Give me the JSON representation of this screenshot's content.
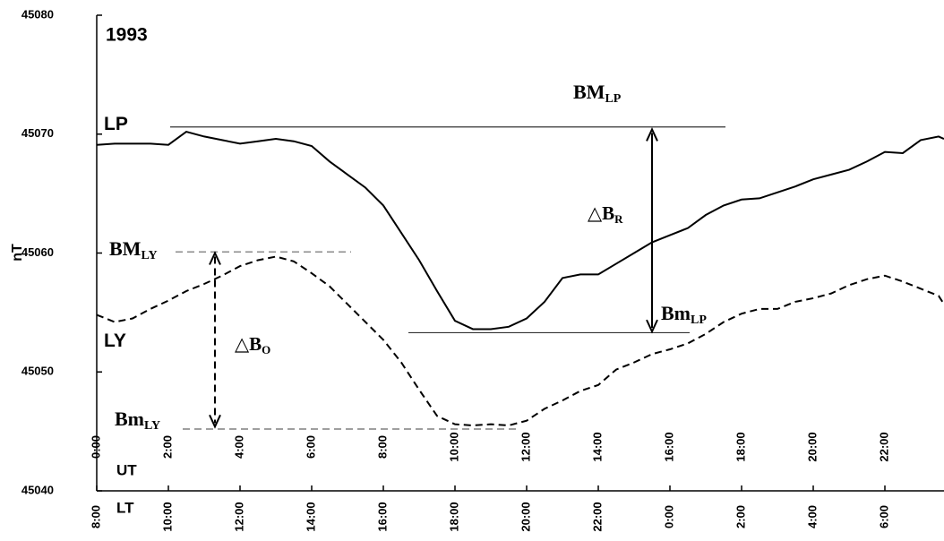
{
  "chart_data": {
    "type": "line",
    "title": "1993",
    "ylabel": "nT",
    "x_axis_label": "UT",
    "x2_axis_label": "LT",
    "xlim": [
      0,
      23.65
    ],
    "ylim": [
      45040,
      45080
    ],
    "yticks": [
      45040,
      45050,
      45060,
      45070,
      45080
    ],
    "xticks": [
      {
        "value": 0,
        "label": "0:00"
      },
      {
        "value": 2,
        "label": "2:00"
      },
      {
        "value": 4,
        "label": "4:00"
      },
      {
        "value": 6,
        "label": "6:00"
      },
      {
        "value": 8,
        "label": "8:00"
      },
      {
        "value": 10,
        "label": "10:00"
      },
      {
        "value": 12,
        "label": "12:00"
      },
      {
        "value": 14,
        "label": "14:00"
      },
      {
        "value": 16,
        "label": "16:00"
      },
      {
        "value": 18,
        "label": "18:00"
      },
      {
        "value": 20,
        "label": "20:00"
      },
      {
        "value": 22,
        "label": "22:00"
      }
    ],
    "x2ticks": [
      {
        "value": 0,
        "label": "8:00"
      },
      {
        "value": 2,
        "label": "10:00"
      },
      {
        "value": 4,
        "label": "12:00"
      },
      {
        "value": 6,
        "label": "14:00"
      },
      {
        "value": 8,
        "label": "16:00"
      },
      {
        "value": 10,
        "label": "18:00"
      },
      {
        "value": 12,
        "label": "20:00"
      },
      {
        "value": 14,
        "label": "22:00"
      },
      {
        "value": 16,
        "label": "0:00"
      },
      {
        "value": 18,
        "label": "2:00"
      },
      {
        "value": 20,
        "label": "4:00"
      },
      {
        "value": 22,
        "label": "6:00"
      }
    ],
    "x": [
      0,
      0.5,
      1,
      1.5,
      2,
      2.5,
      3,
      3.5,
      4,
      4.5,
      5,
      5.5,
      6,
      6.5,
      7,
      7.5,
      8,
      8.5,
      9,
      9.5,
      10,
      10.5,
      11,
      11.5,
      12,
      12.5,
      13,
      13.5,
      14,
      14.5,
      15,
      15.5,
      16,
      16.5,
      17,
      17.5,
      18,
      18.5,
      19,
      19.5,
      20,
      20.5,
      21,
      21.5,
      22,
      22.5,
      23,
      23.5,
      23.65
    ],
    "series": [
      {
        "name": "LP",
        "color": "#000000",
        "dash": false,
        "values": [
          45069.1,
          45069.2,
          45069.2,
          45069.2,
          45069.1,
          45070.2,
          45069.8,
          45069.5,
          45069.2,
          45069.4,
          45069.6,
          45069.4,
          45069.0,
          45067.7,
          45066.6,
          45065.5,
          45064.0,
          45061.7,
          45059.4,
          45056.8,
          45054.3,
          45053.6,
          45053.6,
          45053.8,
          45054.5,
          45055.9,
          45057.9,
          45058.2,
          45058.2,
          45059.1,
          45060.0,
          45060.9,
          45061.5,
          45062.1,
          45063.2,
          45064.0,
          45064.5,
          45064.6,
          45065.1,
          45065.6,
          45066.2,
          45066.6,
          45067.0,
          45067.7,
          45068.5,
          45068.4,
          45069.5,
          45069.8,
          45069.6
        ]
      },
      {
        "name": "LY",
        "color": "#000000",
        "dash": true,
        "values": [
          45054.8,
          45054.2,
          45054.5,
          45055.3,
          45056.0,
          45056.8,
          45057.4,
          45058.1,
          45058.9,
          45059.4,
          45059.7,
          45059.3,
          45058.3,
          45057.2,
          45055.7,
          45054.2,
          45052.7,
          45050.8,
          45048.5,
          45046.3,
          45045.6,
          45045.5,
          45045.6,
          45045.5,
          45045.9,
          45046.9,
          45047.6,
          45048.4,
          45048.9,
          45050.2,
          45050.8,
          45051.5,
          45051.9,
          45052.4,
          45053.2,
          45054.2,
          45054.9,
          45055.3,
          45055.3,
          45055.9,
          45056.2,
          45056.6,
          45057.3,
          45057.8,
          45058.1,
          45057.6,
          45057.0,
          45056.4,
          45055.7
        ]
      }
    ],
    "reference_lines": [
      {
        "label": {
          "main": "BM",
          "sub": "LP"
        },
        "value": 45070.6,
        "x": [
          2.05,
          17.55
        ],
        "dash": false
      },
      {
        "label": {
          "main": "Bm",
          "sub": "LP"
        },
        "value": 45053.3,
        "x": [
          8.7,
          16.55
        ],
        "dash": false
      },
      {
        "label": {
          "main": "BM",
          "sub": "LY"
        },
        "value": 45060.1,
        "x": [
          2.2,
          7.1
        ],
        "dash": true
      },
      {
        "label": {
          "main": "Bm",
          "sub": "LY"
        },
        "value": 45045.2,
        "x": [
          2.4,
          11.75
        ],
        "dash": true
      }
    ],
    "arrows": [
      {
        "label": {
          "main": "△B",
          "sub": "R"
        },
        "x": 15.5,
        "from": 45070.4,
        "to": 45053.4,
        "dash": false
      },
      {
        "label": {
          "main": "△B",
          "sub": "O"
        },
        "x": 3.3,
        "from": 45060.0,
        "to": 45045.4,
        "dash": true
      }
    ]
  }
}
